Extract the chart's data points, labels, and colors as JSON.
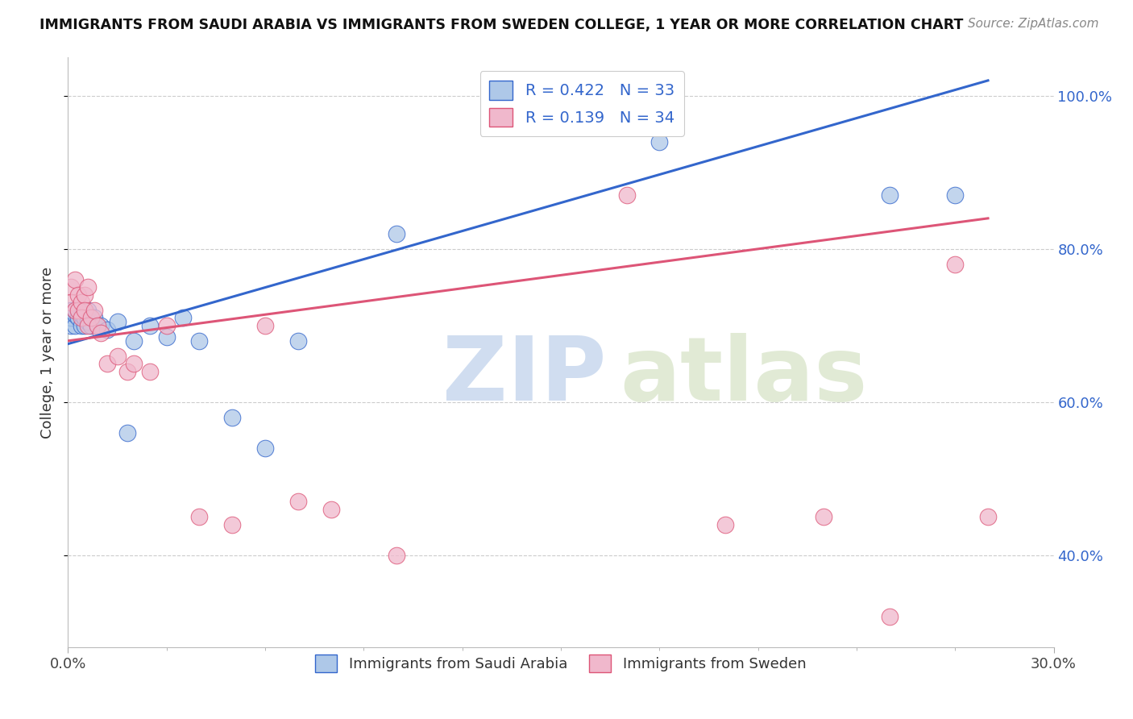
{
  "title": "IMMIGRANTS FROM SAUDI ARABIA VS IMMIGRANTS FROM SWEDEN COLLEGE, 1 YEAR OR MORE CORRELATION CHART",
  "source": "Source: ZipAtlas.com",
  "ylabel": "College, 1 year or more",
  "xlim": [
    0.0,
    0.3
  ],
  "ylim": [
    0.28,
    1.05
  ],
  "yticks": [
    0.4,
    0.6,
    0.8,
    1.0
  ],
  "ytick_labels": [
    "40.0%",
    "60.0%",
    "80.0%",
    "100.0%"
  ],
  "legend_labels": [
    "Immigrants from Saudi Arabia",
    "Immigrants from Sweden"
  ],
  "R_saudi": 0.422,
  "N_saudi": 33,
  "R_sweden": 0.139,
  "N_sweden": 34,
  "color_saudi": "#aec8e8",
  "color_sweden": "#f0b8cc",
  "line_color_saudi": "#3366cc",
  "line_color_sweden": "#dd5577",
  "saudi_x": [
    0.001,
    0.001,
    0.001,
    0.002,
    0.002,
    0.002,
    0.003,
    0.003,
    0.004,
    0.004,
    0.005,
    0.005,
    0.006,
    0.006,
    0.007,
    0.008,
    0.009,
    0.01,
    0.012,
    0.015,
    0.018,
    0.02,
    0.025,
    0.03,
    0.035,
    0.04,
    0.05,
    0.06,
    0.07,
    0.1,
    0.18,
    0.25,
    0.27
  ],
  "saudi_y": [
    0.7,
    0.71,
    0.72,
    0.7,
    0.715,
    0.72,
    0.71,
    0.72,
    0.7,
    0.715,
    0.7,
    0.71,
    0.705,
    0.72,
    0.7,
    0.71,
    0.7,
    0.7,
    0.695,
    0.705,
    0.56,
    0.68,
    0.7,
    0.685,
    0.71,
    0.68,
    0.58,
    0.54,
    0.68,
    0.82,
    0.94,
    0.87,
    0.87
  ],
  "sweden_x": [
    0.001,
    0.001,
    0.002,
    0.002,
    0.003,
    0.003,
    0.004,
    0.004,
    0.005,
    0.005,
    0.006,
    0.006,
    0.007,
    0.008,
    0.009,
    0.01,
    0.012,
    0.015,
    0.018,
    0.02,
    0.025,
    0.03,
    0.04,
    0.05,
    0.06,
    0.07,
    0.08,
    0.1,
    0.17,
    0.2,
    0.23,
    0.25,
    0.27,
    0.28
  ],
  "sweden_y": [
    0.75,
    0.73,
    0.76,
    0.72,
    0.74,
    0.72,
    0.73,
    0.71,
    0.74,
    0.72,
    0.75,
    0.7,
    0.71,
    0.72,
    0.7,
    0.69,
    0.65,
    0.66,
    0.64,
    0.65,
    0.64,
    0.7,
    0.45,
    0.44,
    0.7,
    0.47,
    0.46,
    0.4,
    0.87,
    0.44,
    0.45,
    0.32,
    0.78,
    0.45
  ],
  "saudi_line": [
    0.0,
    0.28,
    0.676,
    1.02
  ],
  "sweden_line": [
    0.0,
    0.28,
    0.68,
    0.84
  ]
}
